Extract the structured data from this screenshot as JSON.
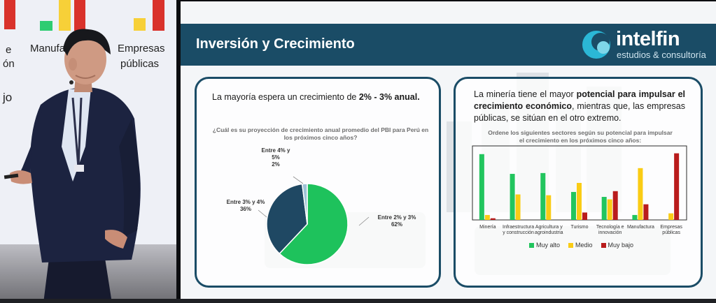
{
  "camera": {
    "background_text": [
      "e",
      "Manufa",
      "Empresas",
      "ón",
      "públicas",
      "jo"
    ]
  },
  "slide": {
    "title": "Inversión y Crecimiento",
    "logo": {
      "name": "intelfin",
      "subtitle": "estudios & consultoría"
    },
    "left_panel": {
      "headline_pre": "La mayoría espera un crecimiento de ",
      "headline_bold": "2% - 3% anual.",
      "question": "¿Cuál es su proyección de crecimiento anual promedio del PBI para Perú en los próximos cinco años?"
    },
    "right_panel": {
      "headline_1": "La minería tiene el mayor ",
      "headline_bold": "potencial para impulsar el crecimiento económico",
      "headline_2": ", mientras que, las empresas públicas, se sitúan en el otro extremo.",
      "question": "Ordene los siguientes sectores según su potencial para impulsar el crecimiento en los próximos cinco años:"
    }
  },
  "colors": {
    "header": "#1a4c66",
    "pie_green": "#1ec25c",
    "pie_navy": "#1f4863",
    "pie_light": "#9fc3d6",
    "muy_alto": "#22c55e",
    "medio": "#facc15",
    "muy_bajo": "#b91c1c"
  },
  "chart_data": [
    {
      "type": "pie",
      "categories": [
        "Entre 2% y 3%",
        "Entre 3% y 4%",
        "Entre 4% y 5%"
      ],
      "values": [
        62,
        36,
        2
      ],
      "labels": [
        "Entre 2% y 3%\n62%",
        "Entre 3% y 4%\n36%",
        "Entre 4% y 5%\n2%"
      ]
    },
    {
      "type": "bar",
      "categories": [
        "Minería",
        "Infraestructura y construcción",
        "Agricultura y agroindustria",
        "Turismo",
        "Tecnología e innovación",
        "Manufactura",
        "Empresas públicas"
      ],
      "category_lines": [
        [
          "Minería"
        ],
        [
          "Infraestructura",
          "y construcción"
        ],
        [
          "Agricultura y",
          "agroindustria"
        ],
        [
          "Turismo"
        ],
        [
          "Tecnología e",
          "innovación"
        ],
        [
          "Manufactura"
        ],
        [
          "Empresas",
          "públicas"
        ]
      ],
      "series": [
        {
          "name": "Muy alto",
          "values": [
            80,
            56,
            57,
            34,
            28,
            6,
            0
          ]
        },
        {
          "name": "Medio",
          "values": [
            6,
            31,
            30,
            45,
            25,
            63,
            8
          ]
        },
        {
          "name": "Muy bajo",
          "values": [
            2,
            0,
            0,
            9,
            35,
            19,
            81
          ]
        }
      ],
      "ylim": [
        0,
        90
      ]
    }
  ]
}
